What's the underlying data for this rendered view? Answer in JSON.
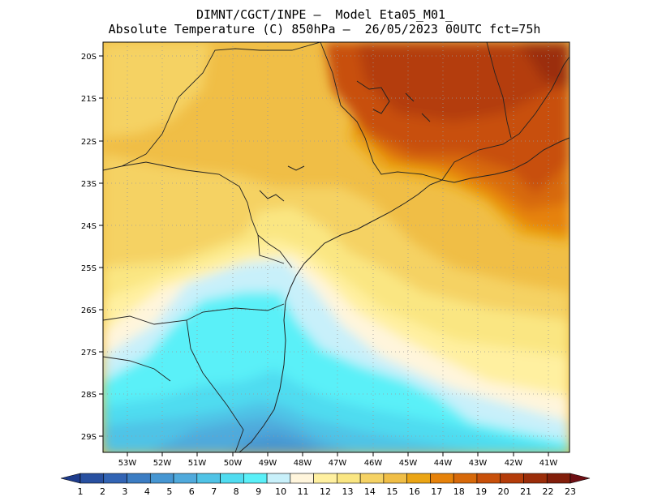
{
  "header": {
    "line1": "DIMNT/CGCT/INPE –  Model Eta05_M01_",
    "line2": "Absolute Temperature (C) 850hPa –  26/05/2023 00UTC fct=75h"
  },
  "map": {
    "lat_labels": [
      "20S",
      "21S",
      "22S",
      "23S",
      "24S",
      "25S",
      "26S",
      "27S",
      "28S",
      "29S"
    ],
    "lon_labels": [
      "53W",
      "52W",
      "51W",
      "50W",
      "49W",
      "48W",
      "47W",
      "46W",
      "45W",
      "44W",
      "43W",
      "42W",
      "41W"
    ],
    "lon_range": [
      -53.7,
      -40.4
    ],
    "lat_range": [
      -29.4,
      -19.8
    ]
  },
  "colorbar": {
    "labels": [
      "1",
      "2",
      "3",
      "4",
      "5",
      "6",
      "7",
      "8",
      "9",
      "10",
      "11",
      "12",
      "13",
      "14",
      "15",
      "16",
      "17",
      "18",
      "19",
      "20",
      "21",
      "22",
      "23"
    ],
    "colors": [
      "#1e3c8c",
      "#2850a0",
      "#3264b4",
      "#3c7dc3",
      "#4696d2",
      "#50aadc",
      "#50c3e6",
      "#50dcf0",
      "#5af0f8",
      "#c8f0fa",
      "#fff5dc",
      "#fff0a0",
      "#fae682",
      "#f5d264",
      "#f0be46",
      "#eba514",
      "#e6820a",
      "#d7690a",
      "#c8500a",
      "#b43c0a",
      "#9b2d0a",
      "#821e0a",
      "#6e0f14"
    ]
  }
}
